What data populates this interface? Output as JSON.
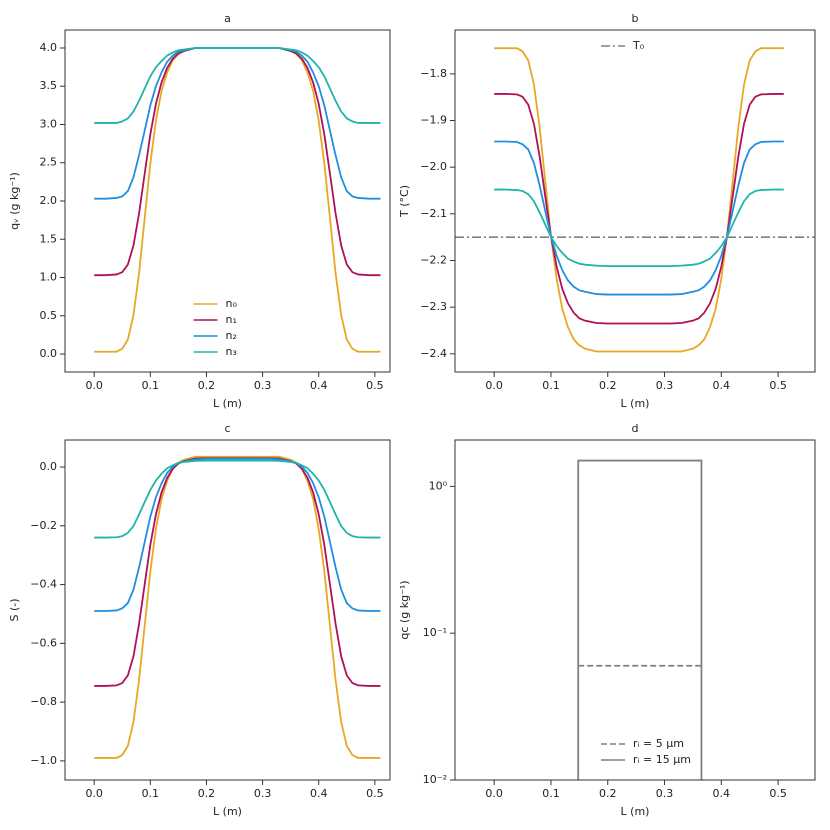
{
  "chart_data": [
    {
      "type": "line",
      "title": "a",
      "x_label": "L (m)",
      "y_label": "qᵥ (g kg⁻¹)",
      "x": [
        0,
        0.02,
        0.04,
        0.05,
        0.06,
        0.07,
        0.08,
        0.09,
        0.1,
        0.11,
        0.12,
        0.13,
        0.14,
        0.15,
        0.16,
        0.18,
        0.2,
        0.255,
        0.31,
        0.33,
        0.35,
        0.36,
        0.37,
        0.38,
        0.39,
        0.4,
        0.41,
        0.42,
        0.43,
        0.44,
        0.45,
        0.46,
        0.47,
        0.49,
        0.51
      ],
      "series": [
        {
          "name": "n₀",
          "color": "#e8a823",
          "values": [
            0.03,
            0.03,
            0.03,
            0.07,
            0.19,
            0.51,
            1.06,
            1.78,
            2.49,
            3.05,
            3.44,
            3.68,
            3.84,
            3.92,
            3.96,
            4.0,
            4.0,
            4.0,
            4.0,
            4.0,
            3.96,
            3.92,
            3.84,
            3.68,
            3.44,
            3.05,
            2.49,
            1.78,
            1.06,
            0.51,
            0.19,
            0.07,
            0.03,
            0.03,
            0.03
          ]
        },
        {
          "name": "n₁",
          "color": "#b0105a",
          "values": [
            1.03,
            1.03,
            1.04,
            1.07,
            1.17,
            1.42,
            1.84,
            2.36,
            2.87,
            3.27,
            3.55,
            3.74,
            3.86,
            3.93,
            3.96,
            4.0,
            4.0,
            4.0,
            4.0,
            4.0,
            3.96,
            3.93,
            3.86,
            3.74,
            3.55,
            3.27,
            2.87,
            2.36,
            1.84,
            1.42,
            1.17,
            1.07,
            1.04,
            1.03,
            1.03
          ]
        },
        {
          "name": "n₂",
          "color": "#1f8fe0",
          "values": [
            2.03,
            2.03,
            2.04,
            2.06,
            2.13,
            2.31,
            2.6,
            2.92,
            3.25,
            3.5,
            3.68,
            3.82,
            3.9,
            3.95,
            3.97,
            4.0,
            4.0,
            4.0,
            4.0,
            4.0,
            3.97,
            3.95,
            3.9,
            3.82,
            3.68,
            3.5,
            3.25,
            2.92,
            2.6,
            2.31,
            2.13,
            2.06,
            2.04,
            2.03,
            2.03
          ]
        },
        {
          "name": "n₃",
          "color": "#1fb5a8",
          "values": [
            3.02,
            3.02,
            3.02,
            3.04,
            3.08,
            3.17,
            3.31,
            3.47,
            3.63,
            3.75,
            3.83,
            3.9,
            3.94,
            3.97,
            3.98,
            4.0,
            4.0,
            4.0,
            4.0,
            4.0,
            3.98,
            3.97,
            3.94,
            3.9,
            3.83,
            3.75,
            3.63,
            3.47,
            3.31,
            3.17,
            3.08,
            3.04,
            3.02,
            3.02,
            3.02
          ]
        }
      ],
      "xlim": [
        -0.052,
        0.527
      ],
      "xticks": [
        {
          "value": 0,
          "label": "0.0"
        },
        0.1,
        0.2,
        0.3,
        0.4,
        0.5
      ],
      "ylim": [
        -0.235,
        4.235
      ],
      "yticks": [
        {
          "value": 0,
          "label": "0.0"
        },
        0.5,
        {
          "value": 1,
          "label": "1.0"
        },
        1.5,
        {
          "value": 2,
          "label": "2.0"
        },
        2.5,
        {
          "value": 3,
          "label": "3.0"
        },
        3.5,
        {
          "value": 4,
          "label": "4.0"
        }
      ],
      "legend": "lower center"
    },
    {
      "type": "line",
      "title": "b",
      "x_label": "L (m)",
      "y_label": "T (°C)",
      "x": [
        0,
        0.02,
        0.04,
        0.05,
        0.06,
        0.07,
        0.08,
        0.09,
        0.1,
        0.11,
        0.12,
        0.13,
        0.14,
        0.15,
        0.16,
        0.18,
        0.2,
        0.255,
        0.31,
        0.33,
        0.35,
        0.36,
        0.37,
        0.38,
        0.39,
        0.4,
        0.41,
        0.42,
        0.43,
        0.44,
        0.45,
        0.46,
        0.47,
        0.49,
        0.51
      ],
      "series": [
        {
          "name": "n₀",
          "color": "#e8a823",
          "values": [
            -1.745,
            -1.745,
            -1.745,
            -1.752,
            -1.771,
            -1.823,
            -1.914,
            -2.031,
            -2.148,
            -2.239,
            -2.304,
            -2.343,
            -2.369,
            -2.382,
            -2.389,
            -2.395,
            -2.395,
            -2.395,
            -2.395,
            -2.395,
            -2.389,
            -2.382,
            -2.369,
            -2.343,
            -2.304,
            -2.239,
            -2.148,
            -2.031,
            -1.914,
            -1.823,
            -1.771,
            -1.752,
            -1.745,
            -1.745,
            -1.745
          ]
        },
        {
          "name": "n₁",
          "color": "#b0105a",
          "values": [
            -1.843,
            -1.843,
            -1.844,
            -1.849,
            -1.866,
            -1.907,
            -1.977,
            -2.063,
            -2.148,
            -2.213,
            -2.261,
            -2.292,
            -2.312,
            -2.324,
            -2.329,
            -2.334,
            -2.335,
            -2.335,
            -2.335,
            -2.334,
            -2.329,
            -2.324,
            -2.312,
            -2.292,
            -2.261,
            -2.213,
            -2.148,
            -2.063,
            -1.977,
            -1.907,
            -1.866,
            -1.849,
            -1.844,
            -1.843,
            -1.843
          ]
        },
        {
          "name": "n₂",
          "color": "#1f8fe0",
          "values": [
            -1.945,
            -1.945,
            -1.946,
            -1.951,
            -1.962,
            -1.991,
            -2.039,
            -2.094,
            -2.148,
            -2.19,
            -2.221,
            -2.243,
            -2.256,
            -2.264,
            -2.267,
            -2.272,
            -2.273,
            -2.273,
            -2.273,
            -2.272,
            -2.267,
            -2.264,
            -2.256,
            -2.243,
            -2.221,
            -2.19,
            -2.148,
            -2.094,
            -2.039,
            -1.991,
            -1.962,
            -1.951,
            -1.946,
            -1.945,
            -1.945
          ]
        },
        {
          "name": "n₃",
          "color": "#1fb5a8",
          "values": [
            -2.048,
            -2.048,
            -2.049,
            -2.051,
            -2.058,
            -2.073,
            -2.097,
            -2.123,
            -2.15,
            -2.169,
            -2.184,
            -2.196,
            -2.202,
            -2.207,
            -2.209,
            -2.211,
            -2.212,
            -2.212,
            -2.212,
            -2.211,
            -2.209,
            -2.207,
            -2.202,
            -2.196,
            -2.184,
            -2.169,
            -2.15,
            -2.123,
            -2.097,
            -2.073,
            -2.058,
            -2.051,
            -2.049,
            -2.048,
            -2.048
          ]
        }
      ],
      "hlines": [
        {
          "name": "T₀",
          "y": -2.15,
          "color": "#808080",
          "style": "dashdot"
        }
      ],
      "xlim": [
        -0.069,
        0.565
      ],
      "xticks": [
        {
          "value": 0,
          "label": "0.0"
        },
        0.1,
        0.2,
        0.3,
        0.4,
        0.5
      ],
      "ylim": [
        -2.439,
        -1.706
      ],
      "yticks": [
        {
          "value": -1.8,
          "label": "−1.8"
        },
        {
          "value": -1.9,
          "label": "−1.9"
        },
        {
          "value": -2.0,
          "label": "−2.0"
        },
        {
          "value": -2.1,
          "label": "−2.1"
        },
        {
          "value": -2.2,
          "label": "−2.2"
        },
        {
          "value": -2.3,
          "label": "−2.3"
        },
        {
          "value": -2.4,
          "label": "−2.4"
        }
      ],
      "legend": "upper center",
      "legend_items": "hlines"
    },
    {
      "type": "line",
      "title": "c",
      "x_label": "L (m)",
      "y_label": "S (-)",
      "x": [
        0,
        0.02,
        0.04,
        0.05,
        0.06,
        0.07,
        0.08,
        0.09,
        0.1,
        0.11,
        0.12,
        0.13,
        0.14,
        0.15,
        0.16,
        0.18,
        0.2,
        0.255,
        0.31,
        0.33,
        0.35,
        0.36,
        0.37,
        0.38,
        0.39,
        0.4,
        0.41,
        0.42,
        0.43,
        0.44,
        0.45,
        0.46,
        0.47,
        0.49,
        0.51
      ],
      "series": [
        {
          "name": "n₀",
          "color": "#e8a823",
          "values": [
            -0.99,
            -0.99,
            -0.99,
            -0.98,
            -0.949,
            -0.867,
            -0.724,
            -0.539,
            -0.355,
            -0.211,
            -0.109,
            -0.047,
            -0.006,
            0.015,
            0.025,
            0.035,
            0.035,
            0.035,
            0.035,
            0.035,
            0.025,
            0.015,
            -0.006,
            -0.047,
            -0.109,
            -0.211,
            -0.355,
            -0.539,
            -0.724,
            -0.867,
            -0.949,
            -0.98,
            -0.99,
            -0.99,
            -0.99
          ]
        },
        {
          "name": "n₁",
          "color": "#b0105a",
          "values": [
            -0.745,
            -0.745,
            -0.743,
            -0.735,
            -0.709,
            -0.644,
            -0.533,
            -0.399,
            -0.265,
            -0.161,
            -0.086,
            -0.037,
            -0.006,
            0.012,
            0.02,
            0.029,
            0.03,
            0.03,
            0.03,
            0.029,
            0.02,
            0.012,
            -0.006,
            -0.037,
            -0.086,
            -0.161,
            -0.265,
            -0.399,
            -0.533,
            -0.644,
            -0.709,
            -0.735,
            -0.743,
            -0.745,
            -0.745
          ]
        },
        {
          "name": "n₂",
          "color": "#1f8fe0",
          "values": [
            -0.49,
            -0.49,
            -0.488,
            -0.481,
            -0.463,
            -0.417,
            -0.341,
            -0.255,
            -0.169,
            -0.103,
            -0.055,
            -0.02,
            0.001,
            0.014,
            0.019,
            0.026,
            0.028,
            0.028,
            0.028,
            0.026,
            0.019,
            0.014,
            0.001,
            -0.02,
            -0.055,
            -0.103,
            -0.169,
            -0.255,
            -0.341,
            -0.417,
            -0.463,
            -0.481,
            -0.488,
            -0.49,
            -0.49
          ]
        },
        {
          "name": "n₃",
          "color": "#1fb5a8",
          "values": [
            -0.24,
            -0.24,
            -0.239,
            -0.235,
            -0.224,
            -0.201,
            -0.161,
            -0.119,
            -0.078,
            -0.046,
            -0.023,
            -0.004,
            0.006,
            0.014,
            0.017,
            0.021,
            0.022,
            0.022,
            0.022,
            0.021,
            0.017,
            0.014,
            0.006,
            -0.004,
            -0.023,
            -0.046,
            -0.078,
            -0.119,
            -0.161,
            -0.201,
            -0.224,
            -0.235,
            -0.239,
            -0.24,
            -0.24
          ]
        }
      ],
      "xlim": [
        -0.052,
        0.527
      ],
      "xticks": [
        {
          "value": 0,
          "label": "0.0"
        },
        0.1,
        0.2,
        0.3,
        0.4,
        0.5
      ],
      "ylim": [
        -1.065,
        0.092
      ],
      "yticks": [
        {
          "value": 0,
          "label": "0.0"
        },
        {
          "value": -0.2,
          "label": "−0.2"
        },
        {
          "value": -0.4,
          "label": "−0.4"
        },
        {
          "value": -0.6,
          "label": "−0.6"
        },
        {
          "value": -0.8,
          "label": "−0.8"
        },
        {
          "value": -1.0,
          "label": "−1.0"
        }
      ]
    },
    {
      "type": "line",
      "title": "d",
      "x_label": "L (m)",
      "y_label": "qc (g kg⁻¹)",
      "yscale": "log",
      "series": [
        {
          "name": "rᵢ = 5 μm",
          "color": "#808080",
          "style": "dashed",
          "x": [
            0.148,
            0.365
          ],
          "values": [
            0.06,
            0.06
          ]
        },
        {
          "name": "rᵢ = 15 μm",
          "color": "#808080",
          "style": "solid",
          "x": [
            0.148,
            0.148,
            0.365,
            0.365
          ],
          "values": [
            0.01,
            1.5,
            1.5,
            0.01
          ]
        }
      ],
      "xlim": [
        -0.069,
        0.565
      ],
      "xticks": [
        {
          "value": 0,
          "label": "0.0"
        },
        0.1,
        0.2,
        0.3,
        0.4,
        0.5
      ],
      "ylim": [
        0.01,
        2.07
      ],
      "yticks": [
        {
          "value": 0.01,
          "label": "10⁻²"
        },
        {
          "value": 0.1,
          "label": "10⁻¹"
        },
        {
          "value": 1,
          "label": "10⁰"
        }
      ],
      "legend": "lower center"
    }
  ]
}
